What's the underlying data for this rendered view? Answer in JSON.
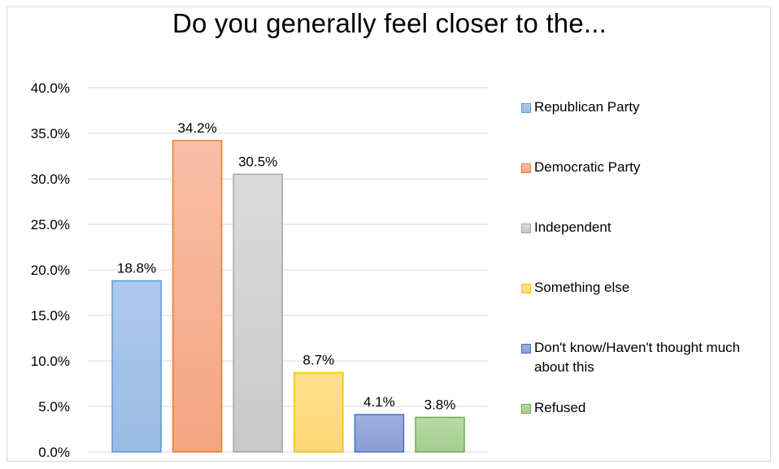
{
  "chart_data": {
    "type": "bar",
    "title": "Do you generally feel closer to the...",
    "categories": [
      "Republican Party",
      "Democratic Party",
      "Independent",
      "Something else",
      "Don't know/Haven't thought much about this",
      "Refused"
    ],
    "values": [
      18.8,
      34.2,
      30.5,
      8.7,
      4.1,
      3.8
    ],
    "value_labels": [
      "18.8%",
      "34.2%",
      "30.5%",
      "8.7%",
      "4.1%",
      "3.8%"
    ],
    "yticks": [
      "0.0%",
      "5.0%",
      "10.0%",
      "15.0%",
      "20.0%",
      "25.0%",
      "30.0%",
      "35.0%",
      "40.0%"
    ],
    "ylim": [
      0,
      40
    ],
    "grid": true,
    "legend_position": "right",
    "colors": [
      {
        "fill_top": "#aec9eb",
        "fill_bottom": "#9abbe5",
        "stroke": "#5b9bd5"
      },
      {
        "fill_top": "#f8bfa6",
        "fill_bottom": "#f4a582",
        "stroke": "#ed7d31"
      },
      {
        "fill_top": "#dbdbdb",
        "fill_bottom": "#c9c9c9",
        "stroke": "#a5a5a5"
      },
      {
        "fill_top": "#ffe08f",
        "fill_bottom": "#ffd873",
        "stroke": "#ffc000"
      },
      {
        "fill_top": "#9fb0e0",
        "fill_bottom": "#8a9ed6",
        "stroke": "#4472c4"
      },
      {
        "fill_top": "#b7d9a6",
        "fill_bottom": "#a5cd8f",
        "stroke": "#70ad47"
      }
    ]
  }
}
